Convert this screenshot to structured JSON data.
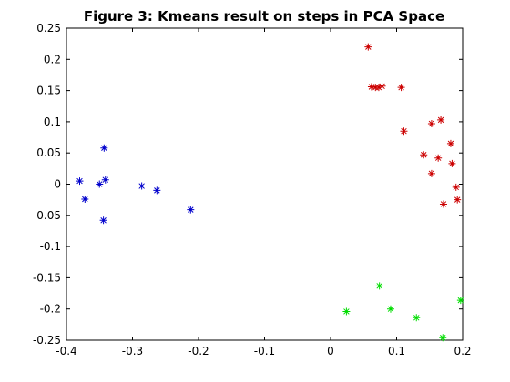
{
  "chart_data": {
    "type": "scatter",
    "title": "Figure 3: Kmeans result on steps in PCA Space",
    "xlabel": "",
    "ylabel": "",
    "xlim": [
      -0.4,
      0.2
    ],
    "ylim": [
      -0.25,
      0.25
    ],
    "x_ticks": [
      "-0.4",
      "-0.3",
      "-0.2",
      "-0.1",
      "0",
      "0.1",
      "0.2"
    ],
    "y_ticks": [
      "0.25",
      "0.2",
      "0.15",
      "0.1",
      "0.05",
      "0",
      "-0.05",
      "-0.1",
      "-0.15",
      "-0.2",
      "-0.25"
    ],
    "grid": false,
    "marker": "*",
    "series": [
      {
        "color": "#0000cc",
        "points": [
          [
            -0.343,
            0.058
          ],
          [
            -0.38,
            0.005
          ],
          [
            -0.341,
            0.007
          ],
          [
            -0.35,
            0.0
          ],
          [
            -0.372,
            -0.024
          ],
          [
            -0.286,
            -0.003
          ],
          [
            -0.263,
            -0.01
          ],
          [
            -0.212,
            -0.041
          ],
          [
            -0.344,
            -0.058
          ]
        ]
      },
      {
        "color": "#cc0000",
        "points": [
          [
            0.057,
            0.22
          ],
          [
            0.062,
            0.156
          ],
          [
            0.068,
            0.155
          ],
          [
            0.073,
            0.155
          ],
          [
            0.078,
            0.157
          ],
          [
            0.107,
            0.155
          ],
          [
            0.111,
            0.085
          ],
          [
            0.153,
            0.097
          ],
          [
            0.167,
            0.103
          ],
          [
            0.141,
            0.047
          ],
          [
            0.163,
            0.042
          ],
          [
            0.182,
            0.065
          ],
          [
            0.184,
            0.033
          ],
          [
            0.153,
            0.017
          ],
          [
            0.19,
            -0.005
          ],
          [
            0.192,
            -0.025
          ],
          [
            0.171,
            -0.032
          ]
        ]
      },
      {
        "color": "#00dd00",
        "points": [
          [
            0.074,
            -0.163
          ],
          [
            0.197,
            -0.186
          ],
          [
            0.024,
            -0.204
          ],
          [
            0.091,
            -0.2
          ],
          [
            0.13,
            -0.214
          ],
          [
            0.17,
            -0.246
          ]
        ]
      }
    ]
  }
}
